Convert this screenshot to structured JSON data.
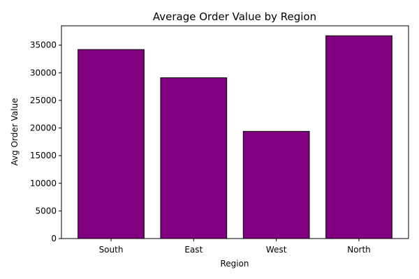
{
  "chart_data": {
    "type": "bar",
    "title": "Average Order Value by Region",
    "xlabel": "Region",
    "ylabel": "Avg Order Value",
    "categories": [
      "South",
      "East",
      "West",
      "North"
    ],
    "values": [
      34200,
      29100,
      19400,
      36700
    ],
    "ylim": [
      0,
      38500
    ],
    "yticks": [
      0,
      5000,
      10000,
      15000,
      20000,
      25000,
      30000,
      35000
    ],
    "bar_color": "#800080",
    "edge_color": "#000000",
    "grid": false,
    "legend": "none"
  }
}
